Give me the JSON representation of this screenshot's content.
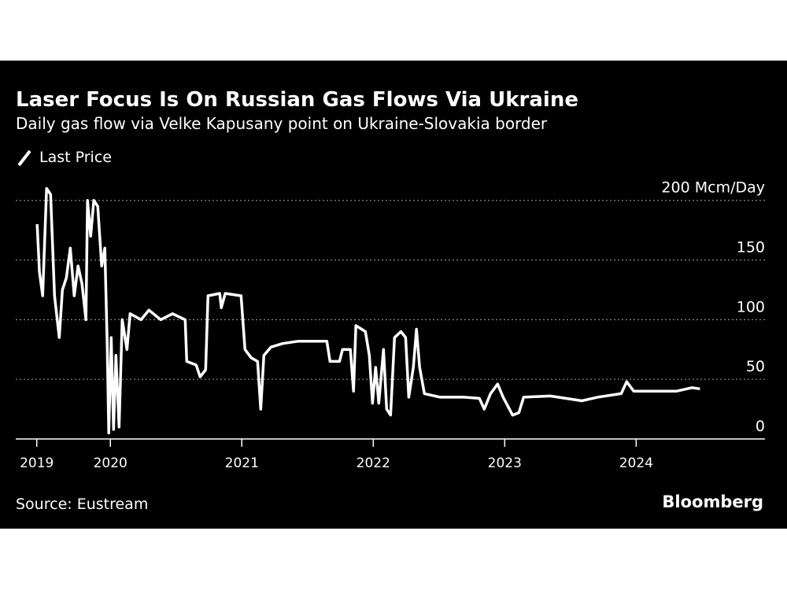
{
  "chart_data": {
    "type": "line",
    "title": "Laser Focus Is On Russian Gas Flows Via Ukraine",
    "subtitle": "Daily gas flow via Velke Kapusany point on Ukraine-Slovakia border",
    "source": "Source: Eustream",
    "brand": "Bloomberg",
    "x": [
      2019.443,
      2019.46,
      2019.485,
      2019.515,
      2019.545,
      2019.575,
      2019.611,
      2019.635,
      2019.665,
      2019.695,
      2019.725,
      2019.754,
      2019.784,
      2019.814,
      2019.826,
      2019.85,
      2019.874,
      2019.904,
      2019.934,
      2019.958,
      2019.976,
      2019.988,
      2020.006,
      2020.024,
      2020.042,
      2020.066,
      2020.09,
      2020.126,
      2020.15,
      2020.234,
      2020.293,
      2020.383,
      2020.473,
      2020.569,
      2020.581,
      2020.653,
      2020.683,
      2020.725,
      2020.743,
      2020.832,
      2020.844,
      2020.874,
      2020.994,
      2021.024,
      2021.072,
      2021.12,
      2021.144,
      2021.168,
      2021.222,
      2021.311,
      2021.431,
      2021.647,
      2021.671,
      2021.743,
      2021.766,
      2021.826,
      2021.85,
      2021.868,
      2021.94,
      2021.97,
      2021.994,
      2022.018,
      2022.042,
      2022.078,
      2022.102,
      2022.132,
      2022.162,
      2022.21,
      2022.246,
      2022.27,
      2022.305,
      2022.329,
      2022.353,
      2022.389,
      2022.509,
      2022.689,
      2022.808,
      2022.844,
      2022.892,
      2022.946,
      2022.988,
      2023.06,
      2023.108,
      2023.144,
      2023.347,
      2023.587,
      2023.707,
      2023.886,
      2023.928,
      2023.982,
      2024.126,
      2024.305,
      2024.425,
      2024.485
    ],
    "series": [
      {
        "name": "Last Price",
        "color": "#ffffff",
        "values": [
          180,
          140,
          120,
          210,
          205,
          120,
          85,
          125,
          135,
          160,
          120,
          145,
          130,
          100,
          200,
          170,
          200,
          195,
          145,
          160,
          80,
          5,
          85,
          8,
          70,
          10,
          100,
          75,
          105,
          100,
          108,
          100,
          105,
          100,
          65,
          62,
          52,
          58,
          120,
          122,
          110,
          122,
          120,
          75,
          68,
          65,
          25,
          70,
          77,
          80,
          82,
          82,
          65,
          65,
          75,
          75,
          40,
          95,
          90,
          70,
          30,
          60,
          30,
          75,
          25,
          20,
          85,
          90,
          85,
          35,
          60,
          92,
          60,
          38,
          35,
          35,
          34,
          25,
          38,
          46,
          35,
          20,
          22,
          35,
          36,
          32,
          35,
          38,
          48,
          40,
          40,
          40,
          43,
          42
        ]
      }
    ],
    "xlim": [
      2019.28,
      2024.98
    ],
    "xticks": [
      {
        "value": 2019.44,
        "label": "2019"
      },
      {
        "value": 2020,
        "label": "2020"
      },
      {
        "value": 2021,
        "label": "2021"
      },
      {
        "value": 2022,
        "label": "2022"
      },
      {
        "value": 2023,
        "label": "2023"
      },
      {
        "value": 2024,
        "label": "2024"
      }
    ],
    "ylim": [
      0,
      213
    ],
    "yticks": [
      0,
      50,
      100,
      150,
      {
        "value": 200,
        "label": "200 Mcm/Day"
      }
    ],
    "grid": true
  }
}
